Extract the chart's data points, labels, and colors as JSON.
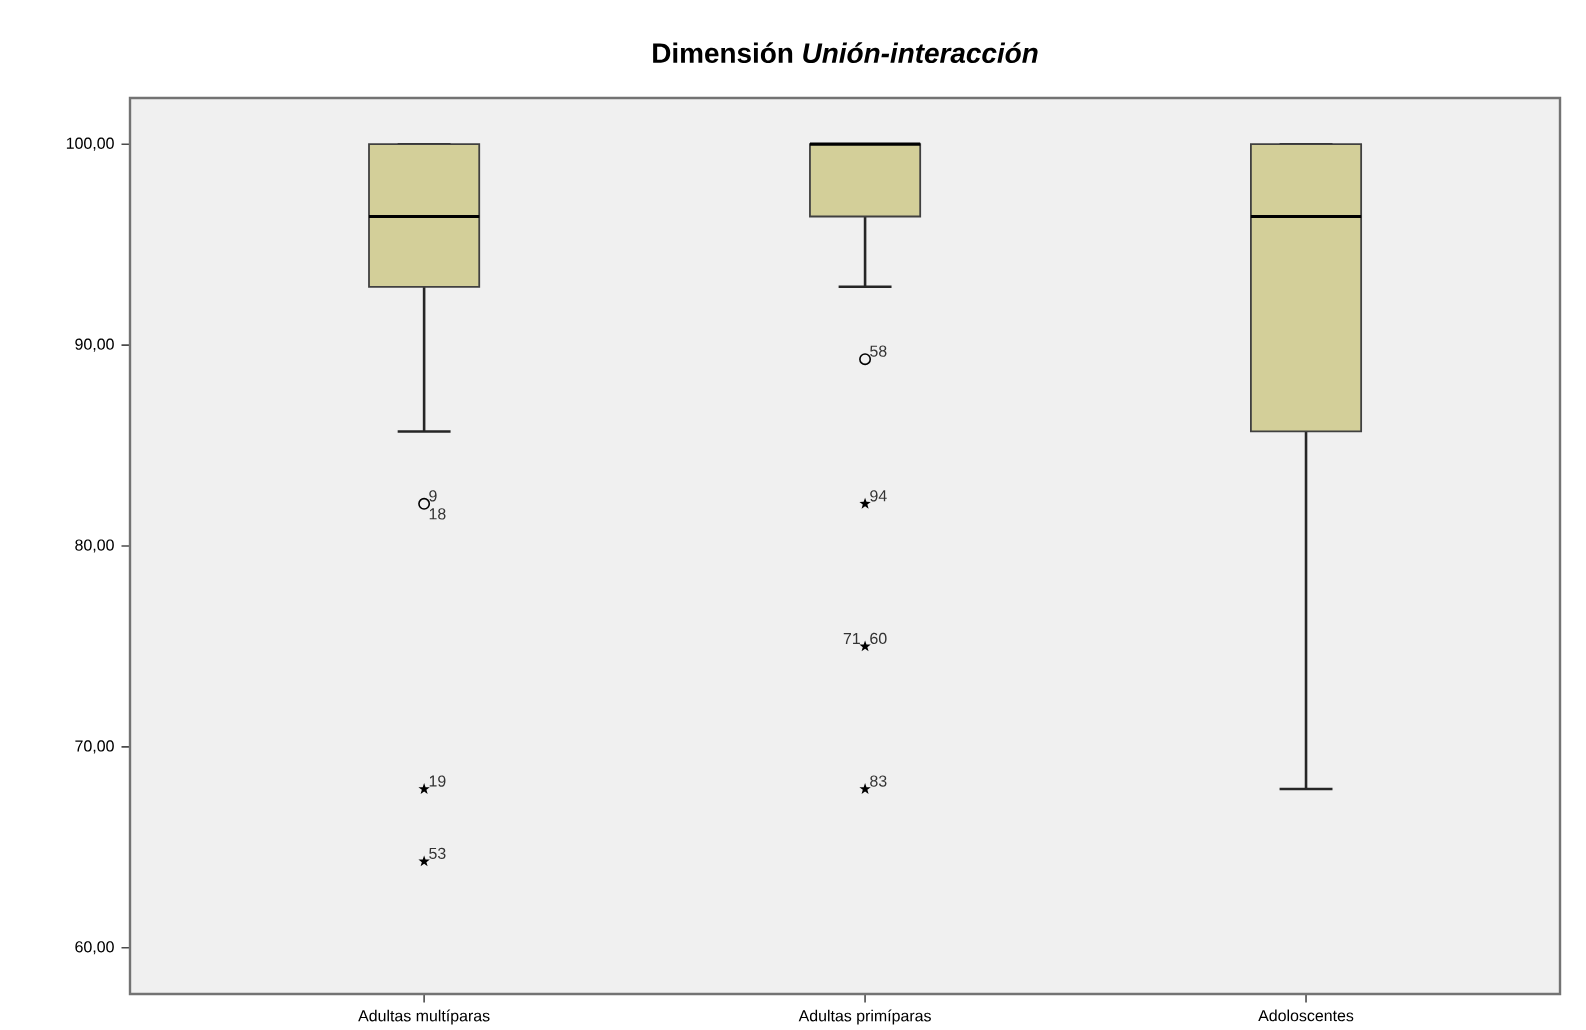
{
  "chart_data": {
    "type": "box",
    "title": "Dimensión *Unión-interacción*",
    "categories": [
      "Adultas multíparas",
      "Adultas primíparas",
      "Adoloscentes"
    ],
    "color": "#d3cf99",
    "boxes": [
      {
        "low": 85.7,
        "q1": 92.9,
        "median": 96.4,
        "q3": 100,
        "high": 100
      },
      {
        "low": 92.9,
        "q1": 96.4,
        "median": 100,
        "q3": 100,
        "high": 100
      },
      {
        "low": 67.9,
        "q1": 85.7,
        "median": 96.4,
        "q3": 100,
        "high": 100
      }
    ],
    "series": [
      {
        "type": "scatter",
        "marker": "circle",
        "color": "#000000",
        "x": [
          "Adultas multíparas",
          "Adultas primíparas"
        ],
        "values": [
          82.1,
          89.3
        ]
      },
      {
        "type": "scatter",
        "marker": "star",
        "color": "#000000",
        "x": [
          "Adultas multíparas",
          "Adultas multíparas",
          "Adultas primíparas",
          "Adultas primíparas",
          "Adultas primíparas"
        ],
        "values": [
          67.9,
          64.3,
          82.1,
          75.0,
          67.9
        ]
      }
    ],
    "annotations": [
      {
        "text": "9",
        "x": "Adultas multíparas",
        "y": 82.1
      },
      {
        "text": "18",
        "x": "Adultas multíparas",
        "y": 82.1
      },
      {
        "text": "19",
        "x": "Adultas multíparas",
        "y": 67.9
      },
      {
        "text": "53",
        "x": "Adultas multíparas",
        "y": 64.3
      },
      {
        "text": "58",
        "x": "Adultas primíparas",
        "y": 89.3
      },
      {
        "text": "94",
        "x": "Adultas primíparas",
        "y": 82.1
      },
      {
        "text": "60",
        "x": "Adultas primíparas",
        "y": 75.0
      },
      {
        "text": "71",
        "x": "Adultas primíparas",
        "y": 75.0
      },
      {
        "text": "83",
        "x": "Adultas primíparas",
        "y": 67.9
      }
    ],
    "ylim": [
      57.7,
      102.3
    ],
    "yticks": [
      {
        "value": 60,
        "label": "60,00"
      },
      {
        "value": 70,
        "label": "70,00"
      },
      {
        "value": 80,
        "label": "80,00"
      },
      {
        "value": 90,
        "label": "90,00"
      },
      {
        "value": 100,
        "label": "100,00"
      }
    ],
    "grid": false
  }
}
